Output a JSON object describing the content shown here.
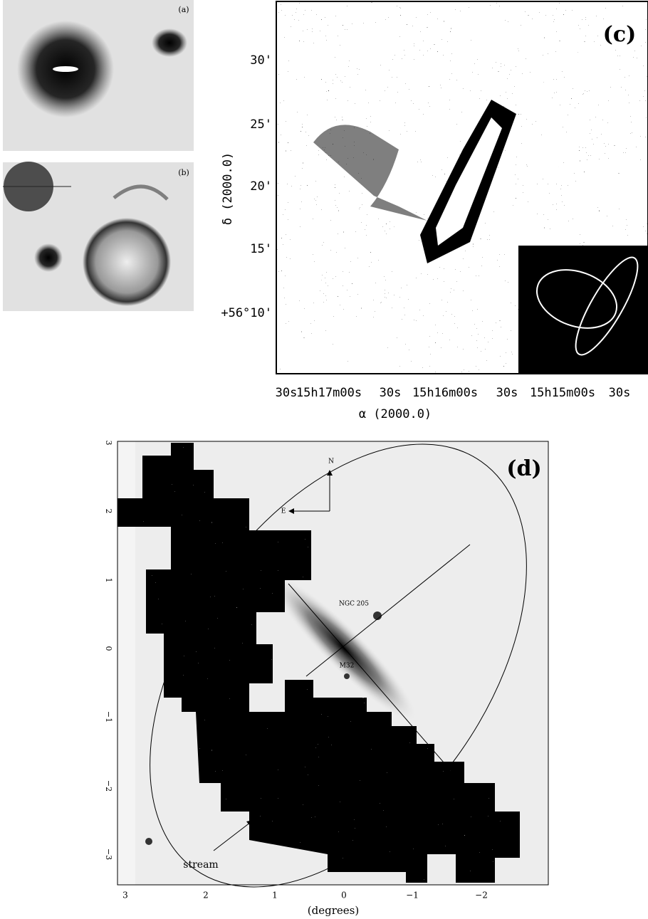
{
  "panels": {
    "a": {
      "label": "(a)"
    },
    "b": {
      "label": "(b)"
    },
    "c": {
      "label": "(c)",
      "y_axis": {
        "title": "δ (2000.0)",
        "ticks": [
          "30'",
          "25'",
          "20'",
          "15'",
          "+56°10'"
        ]
      },
      "x_axis": {
        "title": "α (2000.0)",
        "ticks": [
          "30s",
          "15h17m00s",
          "30s",
          "15h16m00s",
          "30s",
          "15h15m00s",
          "30s"
        ]
      }
    },
    "d": {
      "label": "(d)",
      "y_axis": {
        "ticks": [
          "3",
          "2",
          "1",
          "0",
          "−1",
          "−2",
          "−3"
        ]
      },
      "x_axis": {
        "title": "(degrees)",
        "ticks": [
          "3",
          "2",
          "1",
          "0",
          "−1",
          "−2"
        ]
      },
      "annotations": [
        "N",
        "E",
        "NGC 205",
        "M32",
        "stream"
      ]
    }
  }
}
